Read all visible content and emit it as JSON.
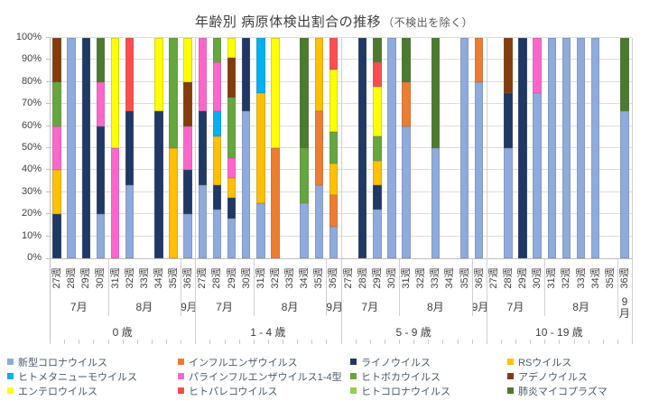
{
  "title": {
    "main": "年齢別 病原体検出割合の推移",
    "note": "（不検出を除く）"
  },
  "chart_data": {
    "type": "bar",
    "subtype": "100%-stacked-column",
    "grid": true,
    "legend_position": "bottom",
    "ylim": [
      0,
      100
    ],
    "y_ticks": [
      "0%",
      "10%",
      "20%",
      "30%",
      "40%",
      "50%",
      "60%",
      "70%",
      "80%",
      "90%",
      "100%"
    ],
    "series": [
      {
        "name": "新型コロナウイルス",
        "color": "#8FAADC"
      },
      {
        "name": "インフルエンザウイルス",
        "color": "#ED7D31"
      },
      {
        "name": "ライノウイルス",
        "color": "#203864"
      },
      {
        "name": "RSウイルス",
        "color": "#FFC000"
      },
      {
        "name": "ヒトメタニューモウイルス",
        "color": "#00B0F0"
      },
      {
        "name": "パラインフルエンザウイルス1-4型",
        "color": "#FF66CC"
      },
      {
        "name": "ヒトボカウイルス",
        "color": "#65A63D"
      },
      {
        "name": "アデノウイルス",
        "color": "#843C0C"
      },
      {
        "name": "エンテロウイルス",
        "color": "#FFFF00"
      },
      {
        "name": "ヒトパレコウイルス",
        "color": "#FF4D4D"
      },
      {
        "name": "ヒトコロナウイルス",
        "color": "#92D050"
      },
      {
        "name": "肺炎マイコプラズマ",
        "color": "#4C7A2E"
      }
    ],
    "groups": [
      {
        "age": "0 歳",
        "months": [
          {
            "label": "7月",
            "weeks": [
              "27週",
              "28週",
              "29週",
              "30週"
            ]
          },
          {
            "label": "8月",
            "weeks": [
              "31週",
              "32週",
              "33週",
              "34週",
              "35週"
            ]
          },
          {
            "label": "9月",
            "weeks": [
              "36週"
            ]
          }
        ],
        "bars": {
          "27週": [
            [
              "ライノウイルス",
              20
            ],
            [
              "RSウイルス",
              20
            ],
            [
              "パラインフルエンザウイルス1-4型",
              20
            ],
            [
              "ヒトボカウイルス",
              20
            ],
            [
              "アデノウイルス",
              20
            ]
          ],
          "28週": [
            [
              "新型コロナウイルス",
              100
            ]
          ],
          "29週": [
            [
              "ライノウイルス",
              100
            ]
          ],
          "30週": [
            [
              "新型コロナウイルス",
              20
            ],
            [
              "ライノウイルス",
              40
            ],
            [
              "パラインフルエンザウイルス1-4型",
              20
            ],
            [
              "肺炎マイコプラズマ",
              20
            ]
          ],
          "31週": [
            [
              "パラインフルエンザウイルス1-4型",
              50
            ],
            [
              "エンテロウイルス",
              50
            ]
          ],
          "32週": [
            [
              "新型コロナウイルス",
              33.3
            ],
            [
              "ライノウイルス",
              33.3
            ],
            [
              "ヒトパレコウイルス",
              33.4
            ]
          ],
          "33週": [],
          "34週": [
            [
              "ライノウイルス",
              66.7
            ],
            [
              "エンテロウイルス",
              33.3
            ]
          ],
          "35週": [
            [
              "RSウイルス",
              50
            ],
            [
              "ヒトボカウイルス",
              50
            ]
          ],
          "36週": [
            [
              "新型コロナウイルス",
              20
            ],
            [
              "ライノウイルス",
              20
            ],
            [
              "パラインフルエンザウイルス1-4型",
              20
            ],
            [
              "アデノウイルス",
              20
            ],
            [
              "エンテロウイルス",
              20
            ]
          ]
        }
      },
      {
        "age": "1 - 4 歳",
        "months": [
          {
            "label": "7月",
            "weeks": [
              "27週",
              "28週",
              "29週",
              "30週"
            ]
          },
          {
            "label": "8月",
            "weeks": [
              "31週",
              "32週",
              "33週",
              "34週",
              "35週"
            ]
          },
          {
            "label": "9月",
            "weeks": [
              "36週"
            ]
          }
        ],
        "bars": {
          "27週": [
            [
              "新型コロナウイルス",
              33.3
            ],
            [
              "ライノウイルス",
              33.3
            ],
            [
              "パラインフルエンザウイルス1-4型",
              33.4
            ]
          ],
          "28週": [
            [
              "新型コロナウイルス",
              22.2
            ],
            [
              "ライノウイルス",
              11.1
            ],
            [
              "RSウイルス",
              22.2
            ],
            [
              "ヒトメタニューモウイルス",
              11.1
            ],
            [
              "パラインフルエンザウイルス1-4型",
              22.2
            ],
            [
              "ヒトボカウイルス",
              11.2
            ]
          ],
          "29週": [
            [
              "新型コロナウイルス",
              18.2
            ],
            [
              "ライノウイルス",
              9.1
            ],
            [
              "RSウイルス",
              9.1
            ],
            [
              "パラインフルエンザウイルス1-4型",
              9.1
            ],
            [
              "ヒトボカウイルス",
              27.3
            ],
            [
              "アデノウイルス",
              18.2
            ],
            [
              "エンテロウイルス",
              9
            ]
          ],
          "30週": [
            [
              "新型コロナウイルス",
              66.7
            ],
            [
              "ライノウイルス",
              33.3
            ]
          ],
          "31週": [
            [
              "新型コロナウイルス",
              25
            ],
            [
              "RSウイルス",
              50
            ],
            [
              "ヒトメタニューモウイルス",
              25
            ]
          ],
          "32週": [
            [
              "インフルエンザウイルス",
              50
            ],
            [
              "エンテロウイルス",
              50
            ]
          ],
          "33週": [],
          "34週": [
            [
              "新型コロナウイルス",
              25
            ],
            [
              "ヒトボカウイルス",
              25
            ],
            [
              "肺炎マイコプラズマ",
              50
            ]
          ],
          "35週": [
            [
              "新型コロナウイルス",
              33.3
            ],
            [
              "インフルエンザウイルス",
              33.3
            ],
            [
              "RSウイルス",
              33.4
            ]
          ],
          "36週": [
            [
              "新型コロナウイルス",
              14.3
            ],
            [
              "インフルエンザウイルス",
              14.3
            ],
            [
              "RSウイルス",
              14.3
            ],
            [
              "ヒトボカウイルス",
              14.3
            ],
            [
              "エンテロウイルス",
              28.5
            ],
            [
              "ヒトパレコウイルス",
              14.3
            ]
          ]
        }
      },
      {
        "age": "5 - 9 歳",
        "months": [
          {
            "label": "7月",
            "weeks": [
              "27週",
              "28週",
              "29週",
              "30週"
            ]
          },
          {
            "label": "8月",
            "weeks": [
              "31週",
              "32週",
              "33週",
              "34週",
              "35週"
            ]
          },
          {
            "label": "9月",
            "weeks": [
              "36週"
            ]
          }
        ],
        "bars": {
          "27週": [],
          "28週": [
            [
              "ライノウイルス",
              100
            ]
          ],
          "29週": [
            [
              "新型コロナウイルス",
              22.2
            ],
            [
              "ライノウイルス",
              11.1
            ],
            [
              "RSウイルス",
              11.1
            ],
            [
              "ヒトボカウイルス",
              11.1
            ],
            [
              "エンテロウイルス",
              22.2
            ],
            [
              "ヒトパレコウイルス",
              11.1
            ],
            [
              "肺炎マイコプラズマ",
              11.2
            ]
          ],
          "30週": [
            [
              "新型コロナウイルス",
              100
            ]
          ],
          "31週": [
            [
              "新型コロナウイルス",
              60
            ],
            [
              "インフルエンザウイルス",
              20
            ],
            [
              "肺炎マイコプラズマ",
              20
            ]
          ],
          "32週": [],
          "33週": [
            [
              "新型コロナウイルス",
              50
            ],
            [
              "肺炎マイコプラズマ",
              50
            ]
          ],
          "34週": [],
          "35週": [
            [
              "新型コロナウイルス",
              100
            ]
          ],
          "36週": [
            [
              "新型コロナウイルス",
              80
            ],
            [
              "インフルエンザウイルス",
              20
            ]
          ]
        }
      },
      {
        "age": "10 - 19 歳",
        "months": [
          {
            "label": "7月",
            "weeks": [
              "27週",
              "28週",
              "29週",
              "30週"
            ]
          },
          {
            "label": "8月",
            "weeks": [
              "31週",
              "32週",
              "33週",
              "34週",
              "35週"
            ]
          },
          {
            "label": "9月",
            "weeks": [
              "36週"
            ]
          }
        ],
        "bars": {
          "27週": [],
          "28週": [
            [
              "新型コロナウイルス",
              50
            ],
            [
              "ライノウイルス",
              25
            ],
            [
              "アデノウイルス",
              25
            ]
          ],
          "29週": [
            [
              "ライノウイルス",
              100
            ]
          ],
          "30週": [
            [
              "新型コロナウイルス",
              75
            ],
            [
              "パラインフルエンザウイルス1-4型",
              25
            ]
          ],
          "31週": [
            [
              "新型コロナウイルス",
              100
            ]
          ],
          "32週": [
            [
              "新型コロナウイルス",
              100
            ]
          ],
          "33週": [
            [
              "新型コロナウイルス",
              100
            ]
          ],
          "34週": [
            [
              "新型コロナウイルス",
              100
            ]
          ],
          "35週": [],
          "36週": [
            [
              "新型コロナウイルス",
              66.7
            ],
            [
              "肺炎マイコプラズマ",
              33.3
            ]
          ]
        }
      }
    ]
  }
}
